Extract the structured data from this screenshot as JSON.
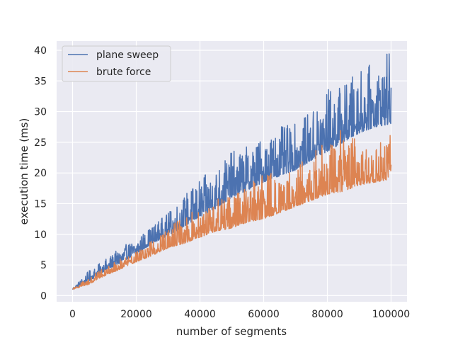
{
  "chart_data": {
    "type": "line",
    "title": "",
    "xlabel": "number of segments",
    "ylabel": "execution time (ms)",
    "xlim": [
      -5000,
      105000
    ],
    "ylim": [
      -1,
      41.5
    ],
    "xticks": [
      0,
      20000,
      40000,
      60000,
      80000,
      100000
    ],
    "xtick_labels": [
      "0",
      "20000",
      "40000",
      "60000",
      "80000",
      "100000"
    ],
    "yticks": [
      0,
      5,
      10,
      15,
      20,
      25,
      30,
      35,
      40
    ],
    "ytick_labels": [
      "0",
      "5",
      "10",
      "15",
      "20",
      "25",
      "30",
      "35",
      "40"
    ],
    "grid": true,
    "legend_position": "top-left",
    "series": [
      {
        "name": "plane sweep",
        "color": "#4c72b0",
        "x": [
          0,
          5000,
          10000,
          15000,
          20000,
          25000,
          30000,
          35000,
          40000,
          45000,
          50000,
          55000,
          60000,
          65000,
          70000,
          75000,
          80000,
          85000,
          90000,
          95000,
          100000
        ],
        "y_low": [
          1.0,
          2.3,
          4.0,
          5.3,
          6.8,
          8.5,
          9.8,
          11.3,
          12.8,
          14.2,
          16.0,
          17.2,
          18.5,
          19.5,
          20.5,
          22.0,
          23.5,
          25.0,
          26.5,
          27.5,
          28.0
        ],
        "y_high": [
          1.3,
          4.0,
          5.8,
          7.8,
          9.3,
          11.5,
          13.5,
          16.5,
          19.0,
          21.0,
          23.5,
          24.5,
          26.0,
          27.5,
          28.0,
          30.0,
          34.0,
          34.5,
          37.0,
          38.0,
          40.0
        ]
      },
      {
        "name": "brute force",
        "color": "#dd8452",
        "x": [
          0,
          5000,
          10000,
          15000,
          20000,
          25000,
          30000,
          35000,
          40000,
          45000,
          50000,
          55000,
          60000,
          65000,
          70000,
          75000,
          80000,
          85000,
          90000,
          95000,
          100000
        ],
        "y_low": [
          1.0,
          1.8,
          3.2,
          4.3,
          5.5,
          6.5,
          7.8,
          8.5,
          9.5,
          10.5,
          11.0,
          12.0,
          12.5,
          13.5,
          14.5,
          15.5,
          16.5,
          17.0,
          18.0,
          18.5,
          19.0
        ],
        "y_high": [
          1.2,
          3.0,
          4.5,
          6.0,
          7.3,
          9.0,
          11.0,
          13.0,
          14.5,
          16.0,
          17.5,
          19.0,
          20.0,
          20.5,
          21.0,
          23.5,
          26.0,
          27.5,
          25.5,
          24.0,
          27.5
        ]
      }
    ]
  }
}
